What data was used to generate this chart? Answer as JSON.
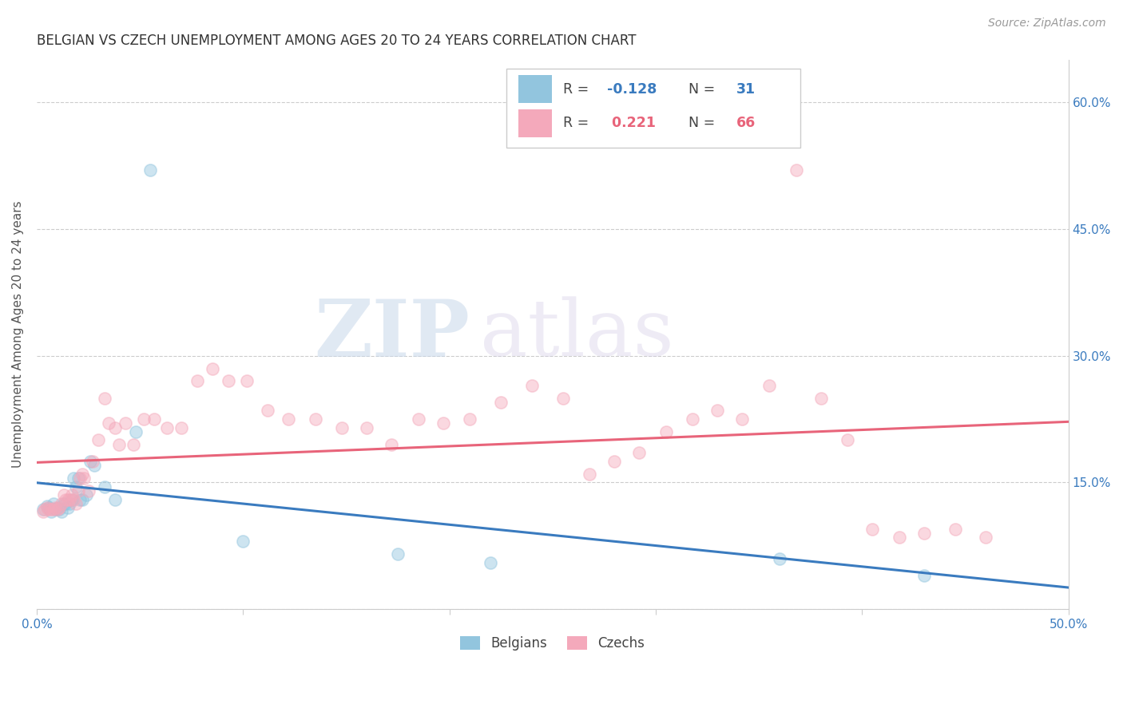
{
  "title": "BELGIAN VS CZECH UNEMPLOYMENT AMONG AGES 20 TO 24 YEARS CORRELATION CHART",
  "source": "Source: ZipAtlas.com",
  "ylabel": "Unemployment Among Ages 20 to 24 years",
  "xlim": [
    0.0,
    0.5
  ],
  "ylim": [
    0.0,
    0.65
  ],
  "xticks": [
    0.0,
    0.1,
    0.2,
    0.3,
    0.4,
    0.5
  ],
  "xticklabels": [
    "0.0%",
    "",
    "",
    "",
    "",
    "50.0%"
  ],
  "yticks": [
    0.0,
    0.15,
    0.3,
    0.45,
    0.6
  ],
  "yticklabels": [
    "",
    "15.0%",
    "30.0%",
    "45.0%",
    "60.0%"
  ],
  "belgian_color": "#92c5de",
  "czech_color": "#f4a9bb",
  "belgian_line_color": "#3a7bbf",
  "czech_line_color": "#e8647a",
  "r_belgian": -0.128,
  "n_belgian": 31,
  "r_czech": 0.221,
  "n_czech": 66,
  "belgians_x": [
    0.003,
    0.005,
    0.006,
    0.007,
    0.008,
    0.009,
    0.01,
    0.011,
    0.012,
    0.013,
    0.014,
    0.015,
    0.016,
    0.017,
    0.018,
    0.019,
    0.02,
    0.021,
    0.022,
    0.024,
    0.026,
    0.028,
    0.033,
    0.038,
    0.048,
    0.055,
    0.1,
    0.175,
    0.22,
    0.36,
    0.43
  ],
  "belgians_y": [
    0.118,
    0.122,
    0.12,
    0.115,
    0.125,
    0.118,
    0.12,
    0.118,
    0.115,
    0.125,
    0.125,
    0.12,
    0.125,
    0.13,
    0.155,
    0.145,
    0.155,
    0.13,
    0.13,
    0.135,
    0.175,
    0.17,
    0.145,
    0.13,
    0.21,
    0.52,
    0.08,
    0.065,
    0.055,
    0.06,
    0.04
  ],
  "czechs_x": [
    0.003,
    0.004,
    0.005,
    0.006,
    0.007,
    0.008,
    0.009,
    0.01,
    0.011,
    0.012,
    0.013,
    0.014,
    0.015,
    0.016,
    0.017,
    0.018,
    0.019,
    0.02,
    0.021,
    0.022,
    0.023,
    0.025,
    0.027,
    0.03,
    0.033,
    0.035,
    0.038,
    0.04,
    0.043,
    0.047,
    0.052,
    0.057,
    0.063,
    0.07,
    0.078,
    0.085,
    0.093,
    0.102,
    0.112,
    0.122,
    0.135,
    0.148,
    0.16,
    0.172,
    0.185,
    0.197,
    0.21,
    0.225,
    0.24,
    0.255,
    0.268,
    0.28,
    0.292,
    0.305,
    0.318,
    0.33,
    0.342,
    0.355,
    0.368,
    0.38,
    0.393,
    0.405,
    0.418,
    0.43,
    0.445,
    0.46
  ],
  "czechs_y": [
    0.115,
    0.118,
    0.12,
    0.118,
    0.118,
    0.118,
    0.12,
    0.118,
    0.12,
    0.125,
    0.135,
    0.13,
    0.13,
    0.13,
    0.135,
    0.13,
    0.125,
    0.14,
    0.155,
    0.16,
    0.155,
    0.14,
    0.175,
    0.2,
    0.25,
    0.22,
    0.215,
    0.195,
    0.22,
    0.195,
    0.225,
    0.225,
    0.215,
    0.215,
    0.27,
    0.285,
    0.27,
    0.27,
    0.235,
    0.225,
    0.225,
    0.215,
    0.215,
    0.195,
    0.225,
    0.22,
    0.225,
    0.245,
    0.265,
    0.25,
    0.16,
    0.175,
    0.185,
    0.21,
    0.225,
    0.235,
    0.225,
    0.265,
    0.52,
    0.25,
    0.2,
    0.095,
    0.085,
    0.09,
    0.095,
    0.085
  ],
  "watermark_zip": "ZIP",
  "watermark_atlas": "atlas",
  "background_color": "#ffffff",
  "grid_color": "#cccccc",
  "title_fontsize": 12,
  "axis_label_fontsize": 11,
  "tick_fontsize": 11,
  "source_fontsize": 10,
  "marker_size": 120,
  "marker_alpha": 0.45
}
